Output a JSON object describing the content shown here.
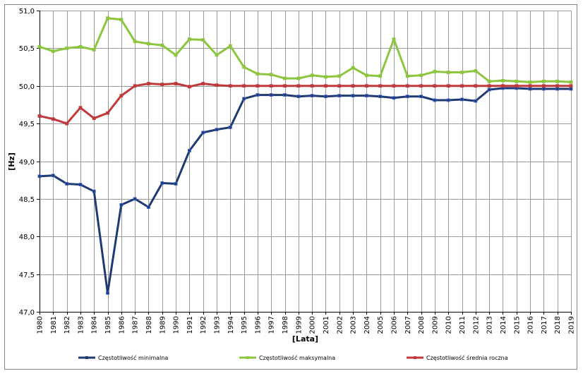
{
  "chart_data": {
    "type": "line",
    "xlabel": "[Lata]",
    "ylabel": "[Hz]",
    "ylim": [
      47.0,
      51.0
    ],
    "ytick_step": 0.5,
    "ytick_labels": [
      "47,0",
      "47,5",
      "48,0",
      "48,5",
      "49,0",
      "49,5",
      "50,0",
      "50,5",
      "51,0"
    ],
    "grid": true,
    "legend_position": "bottom",
    "categories": [
      "1980",
      "1981",
      "1982",
      "1983",
      "1984",
      "1985",
      "1986",
      "1987",
      "1988",
      "1989",
      "1990",
      "1991",
      "1992",
      "1993",
      "1994",
      "1995",
      "1996",
      "1997",
      "1998",
      "1999",
      "2000",
      "2001",
      "2002",
      "2003",
      "2004",
      "2005",
      "2006",
      "2007",
      "2008",
      "2009",
      "2010",
      "2011",
      "2012",
      "2013",
      "2014",
      "2015",
      "2016",
      "2017",
      "2018",
      "2019"
    ],
    "series": [
      {
        "name": "Częstotliwość minimalna",
        "color": "#1f3a73",
        "values": [
          48.8,
          48.81,
          48.7,
          48.69,
          48.6,
          47.25,
          48.42,
          48.5,
          48.39,
          48.71,
          48.7,
          49.14,
          49.38,
          49.42,
          49.45,
          49.83,
          49.88,
          49.88,
          49.88,
          49.86,
          49.87,
          49.86,
          49.87,
          49.87,
          49.87,
          49.86,
          49.84,
          49.86,
          49.86,
          49.81,
          49.81,
          49.82,
          49.8,
          49.95,
          49.97,
          49.97,
          49.96,
          49.96,
          49.96,
          49.96
        ]
      },
      {
        "name": "Częstotliwość maksymalna",
        "color": "#8cc63f",
        "values": [
          50.52,
          50.46,
          50.5,
          50.52,
          50.48,
          50.9,
          50.88,
          50.59,
          50.56,
          50.54,
          50.41,
          50.62,
          50.61,
          50.41,
          50.53,
          50.25,
          50.16,
          50.15,
          50.1,
          50.1,
          50.14,
          50.12,
          50.13,
          50.24,
          50.14,
          50.13,
          50.62,
          50.13,
          50.14,
          50.19,
          50.18,
          50.18,
          50.2,
          50.06,
          50.07,
          50.06,
          50.05,
          50.06,
          50.06,
          50.05
        ]
      },
      {
        "name": "Częstotliwość średnia roczna",
        "color": "#c0393b",
        "values": [
          49.6,
          49.56,
          49.5,
          49.71,
          49.57,
          49.64,
          49.87,
          50.0,
          50.03,
          50.02,
          50.03,
          49.99,
          50.03,
          50.01,
          50.0,
          50.0,
          50.0,
          50.0,
          50.0,
          50.0,
          50.0,
          50.0,
          50.0,
          50.0,
          50.0,
          50.0,
          50.0,
          50.0,
          50.0,
          50.0,
          50.0,
          50.0,
          50.0,
          50.0,
          50.0,
          50.0,
          50.0,
          50.0,
          50.0,
          50.0
        ]
      }
    ]
  }
}
